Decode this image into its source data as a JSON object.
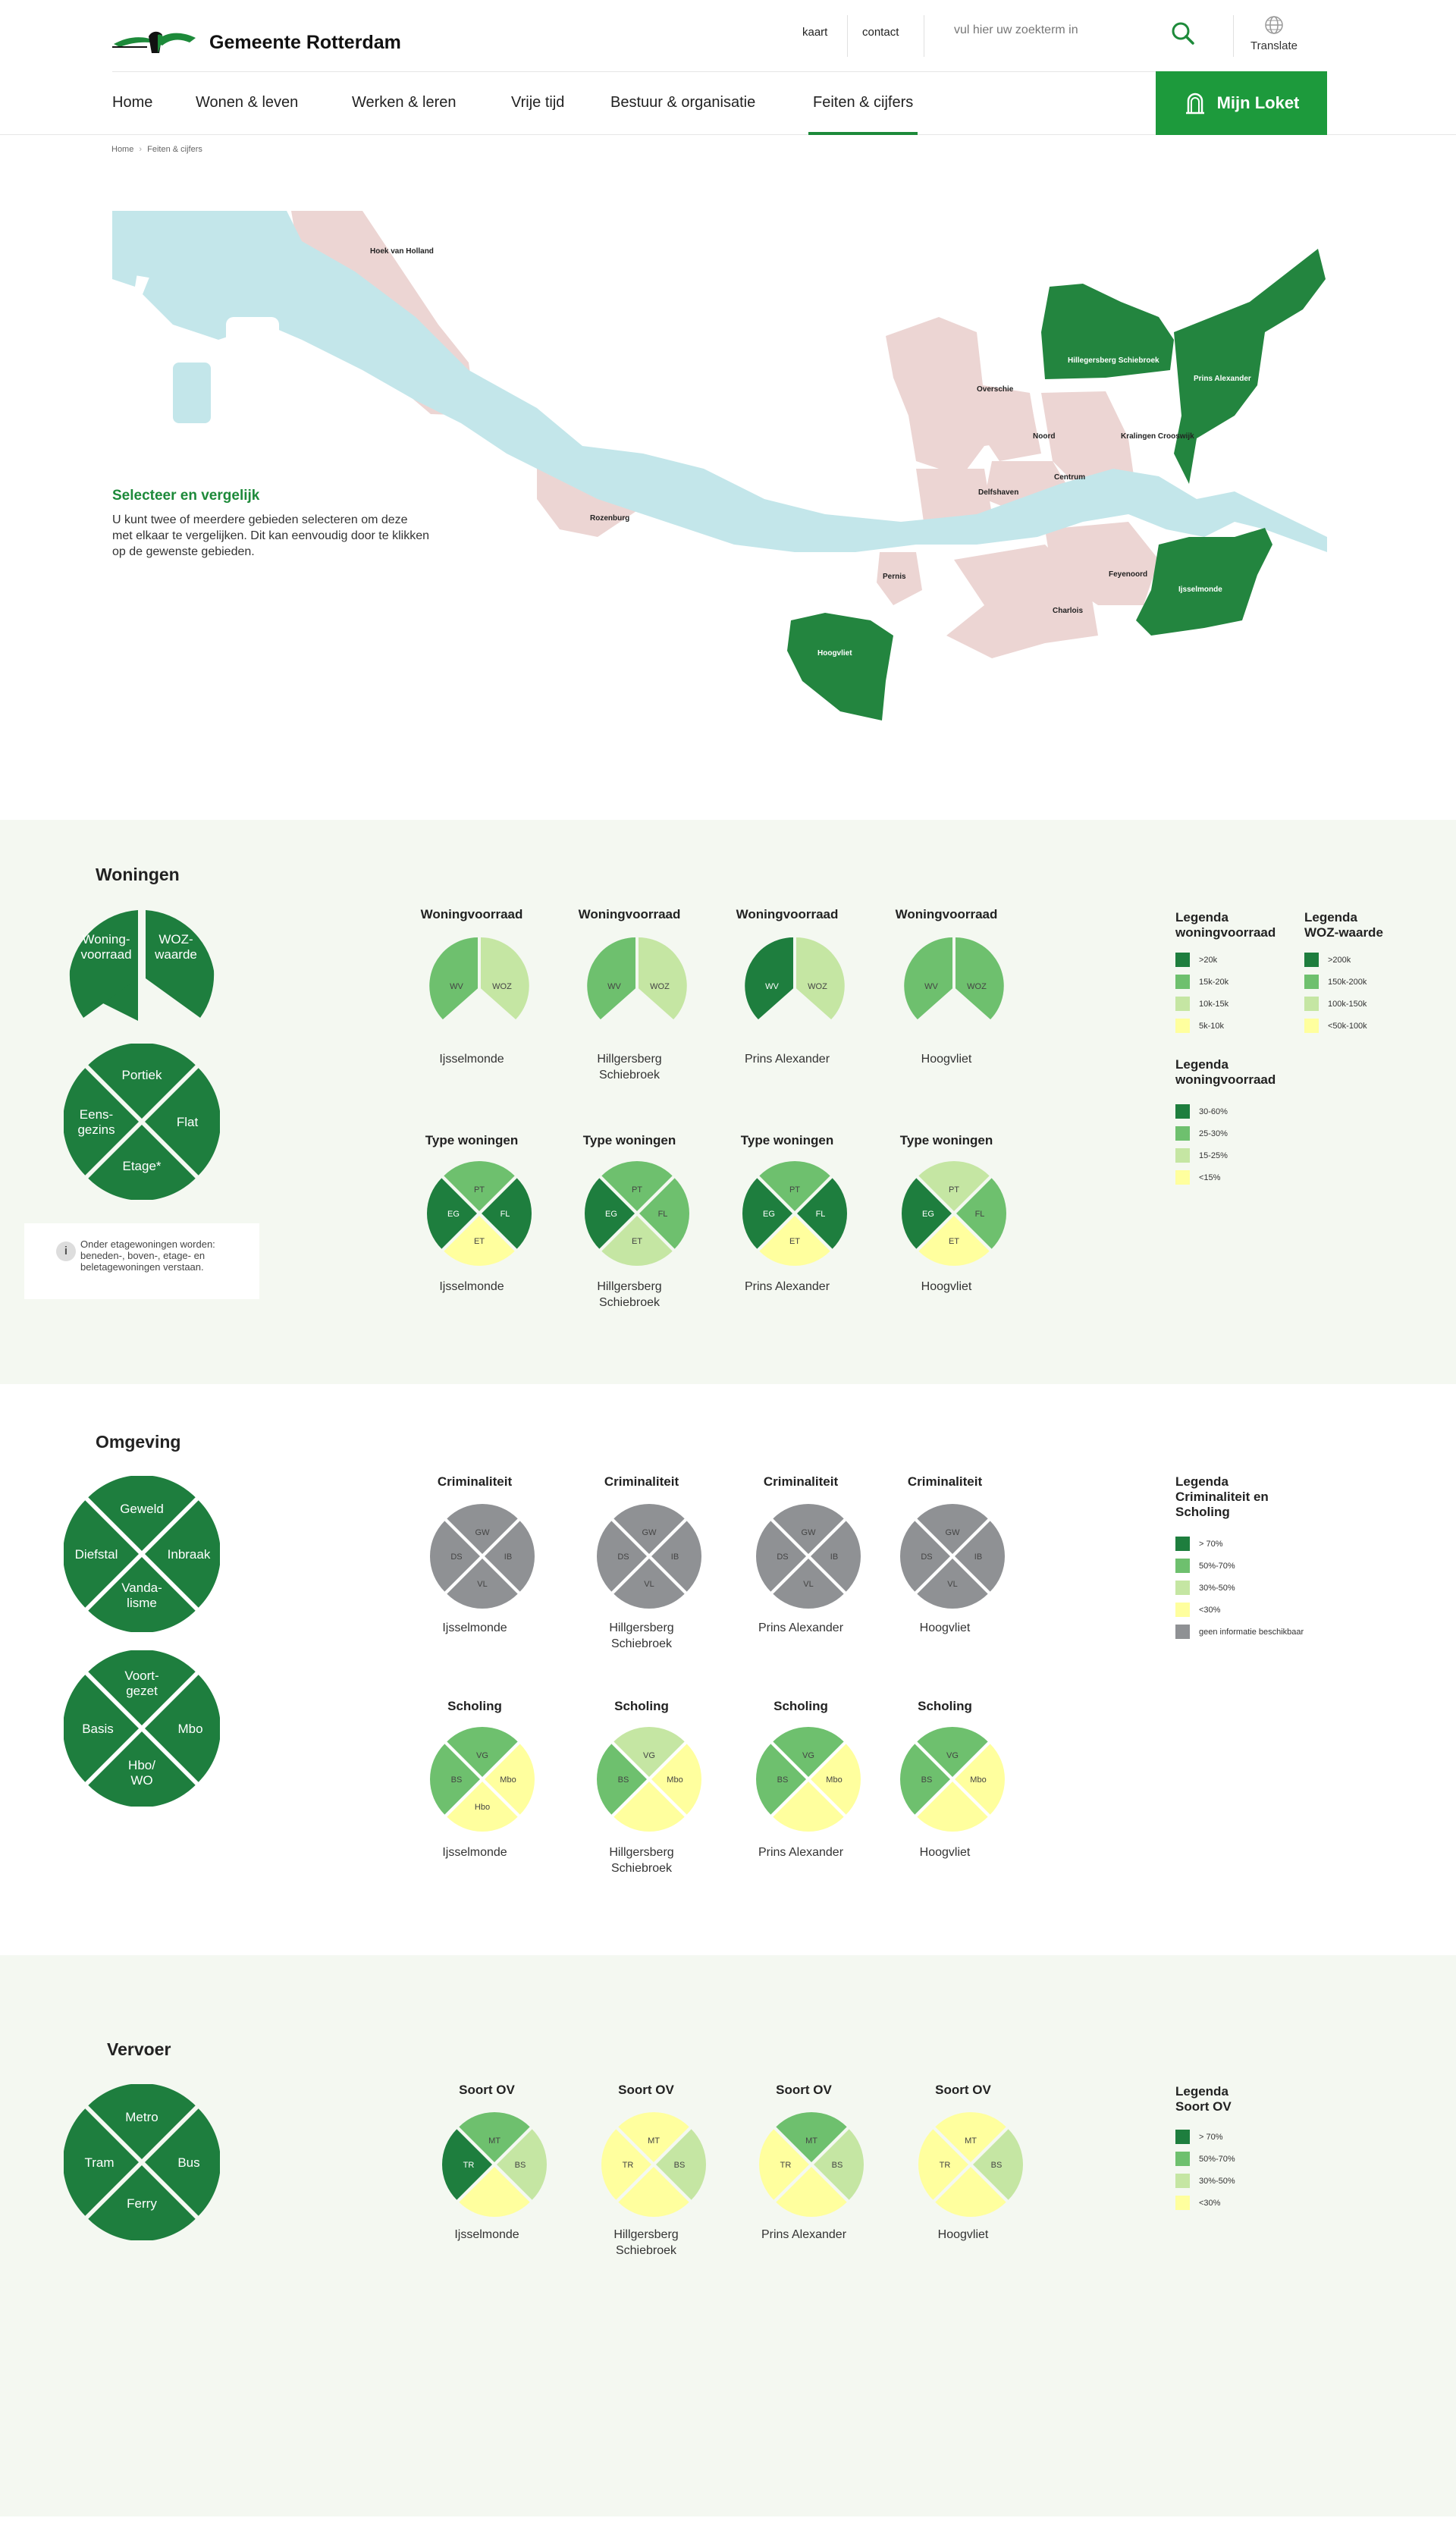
{
  "header": {
    "logo_title": "Gemeente Rotterdam",
    "util_links": [
      "kaart",
      "contact"
    ],
    "search_placeholder": "vul hier uw zoekterm in",
    "translate_label": "Translate",
    "nav": [
      "Home",
      "Wonen & leven",
      "Werken & leren",
      "Vrije tijd",
      "Bestuur & organisatie",
      "Feiten & cijfers"
    ],
    "active_nav": "Feiten & cijfers",
    "login_label": "Mijn Loket"
  },
  "breadcrumb": [
    "Home",
    "Feiten & cijfers"
  ],
  "map": {
    "select_title": "Selecteer en vergelijk",
    "select_text": "U kunt twee of meerdere gebieden selecteren om deze met elkaar te vergelijken. Dit kan eenvoudig door te klikken op de gewenste gebieden.",
    "areas": [
      {
        "name": "Hoek van Holland",
        "selected": false
      },
      {
        "name": "Rozenburg",
        "selected": false
      },
      {
        "name": "Pernis",
        "selected": false
      },
      {
        "name": "Hoogvliet",
        "selected": true
      },
      {
        "name": "Overschie",
        "selected": false
      },
      {
        "name": "Hillegersberg Schiebroek",
        "selected": true
      },
      {
        "name": "Prins Alexander",
        "selected": true
      },
      {
        "name": "Noord",
        "selected": false
      },
      {
        "name": "Kralingen Crooswijk",
        "selected": false
      },
      {
        "name": "Centrum",
        "selected": false
      },
      {
        "name": "Delfshaven",
        "selected": false
      },
      {
        "name": "Feyenoord",
        "selected": false
      },
      {
        "name": "Charlois",
        "selected": false
      },
      {
        "name": "Ijsselmonde",
        "selected": true
      }
    ]
  },
  "colors": {
    "c4": "#1e7e3e",
    "c3": "#6ec06e",
    "c2": "#c5e6a3",
    "c1": "#ffff9e",
    "na": "#8f9194",
    "brand": "#1d8a3a"
  },
  "woningen": {
    "title": "Woningen",
    "wv_big": [
      "Woning-",
      "voorraad"
    ],
    "woz_big": [
      "WOZ-",
      "waarde"
    ],
    "type_big": {
      "top": "Portiek",
      "right": "Flat",
      "bottom": "Etage*",
      "left": [
        "Eens-",
        "gezins"
      ]
    },
    "info_icon": "i",
    "info_text": "Onder etagewoningen worden: beneden-, boven-, etage- en beletagewoningen verstaan.",
    "wv_title": "Woningvoorraad",
    "type_title": "Type woningen",
    "wv_charts": [
      {
        "area": [
          "Ijsselmonde"
        ],
        "wv": "c3",
        "woz": "c2"
      },
      {
        "area": [
          "Hillgersberg",
          "Schiebroek"
        ],
        "wv": "c3",
        "woz": "c2"
      },
      {
        "area": [
          "Prins Alexander"
        ],
        "wv": "c4",
        "woz": "c2"
      },
      {
        "area": [
          "Hoogvliet"
        ],
        "wv": "c3",
        "woz": "c3"
      }
    ],
    "type_charts": [
      {
        "area": [
          "Ijsselmonde"
        ],
        "t": "c3",
        "r": "c4",
        "b": "c1",
        "l": "c4"
      },
      {
        "area": [
          "Hillgersberg",
          "Schiebroek"
        ],
        "t": "c3",
        "r": "c3",
        "b": "c2",
        "l": "c4"
      },
      {
        "area": [
          "Prins Alexander"
        ],
        "t": "c3",
        "r": "c4",
        "b": "c1",
        "l": "c4"
      },
      {
        "area": [
          "Hoogvliet"
        ],
        "t": "c2",
        "r": "c3",
        "b": "c1",
        "l": "c4"
      }
    ],
    "legend1": {
      "title": [
        "Legenda",
        "woningvoorraad"
      ],
      "rows": [
        "&gt;20k",
        "15k-20k",
        "10k-15k",
        "5k-10k"
      ]
    },
    "legend2": {
      "title": [
        "Legenda",
        "WOZ-waarde"
      ],
      "rows": [
        "&gt;200k",
        "150k-200k",
        "100k-150k",
        "&lt;50k-100k"
      ]
    },
    "legend3": {
      "title": [
        "Legenda",
        "woningvoorraad"
      ],
      "rows": [
        "30-60%",
        "25-30%",
        "15-25%",
        "&lt;15%"
      ]
    }
  },
  "omgeving": {
    "title": "Omgeving",
    "crim_big": {
      "top": "Geweld",
      "right": "Inbraak",
      "bottom": [
        "Vanda-",
        "lisme"
      ],
      "left": "Diefstal"
    },
    "school_big": {
      "top": [
        "Voort-",
        "gezet"
      ],
      "right": "Mbo",
      "bottom": [
        "Hbo/",
        "WO"
      ],
      "left": "Basis"
    },
    "crim_title": "Criminaliteit",
    "school_title": "Scholing",
    "crim_charts": [
      {
        "area": [
          "Ijsselmonde"
        ]
      },
      {
        "area": [
          "Hillgersberg",
          "Schiebroek"
        ]
      },
      {
        "area": [
          "Prins Alexander"
        ]
      },
      {
        "area": [
          "Hoogvliet"
        ]
      }
    ],
    "school_charts": [
      {
        "area": [
          "Ijsselmonde"
        ],
        "t": "c3",
        "r": "c1",
        "b": "c1",
        "l": "c3"
      },
      {
        "area": [
          "Hillgersberg",
          "Schiebroek"
        ],
        "t": "c2",
        "r": "c1",
        "b": null,
        "l": "c3"
      },
      {
        "area": [
          "Prins Alexander"
        ],
        "t": "c3",
        "r": "c1",
        "b": null,
        "l": "c3"
      },
      {
        "area": [
          "Hoogvliet"
        ],
        "t": "c3",
        "r": "c1",
        "b": null,
        "l": "c3"
      }
    ],
    "legend": {
      "title": [
        "Legenda",
        "Criminaliteit en",
        "Scholing"
      ],
      "rows": [
        "&gt; 70%",
        "50%-70%",
        "30%-50%",
        "&lt;30%",
        "geen informatie beschikbaar"
      ]
    }
  },
  "vervoer": {
    "title": "Vervoer",
    "big": {
      "top": "Metro",
      "right": "Bus",
      "bottom": "Ferry",
      "left": "Tram"
    },
    "ov_title": "Soort OV",
    "charts": [
      {
        "area": [
          "Ijsselmonde"
        ],
        "t": "c3",
        "r": "c2",
        "b": null,
        "l": "c4"
      },
      {
        "area": [
          "Hillgersberg",
          "Schiebroek"
        ],
        "t": "c1",
        "r": "c2",
        "b": null,
        "l": "c1"
      },
      {
        "area": [
          "Prins Alexander"
        ],
        "t": "c3",
        "r": "c2",
        "b": null,
        "l": "c1"
      },
      {
        "area": [
          "Hoogvliet"
        ],
        "t": "c1",
        "r": "c2",
        "b": null,
        "l": "c1"
      }
    ],
    "legend": {
      "title": [
        "Legenda",
        "Soort OV"
      ],
      "rows": [
        "&gt; 70%",
        "50%-70%",
        "30%-50%",
        "&lt;30%"
      ]
    }
  }
}
